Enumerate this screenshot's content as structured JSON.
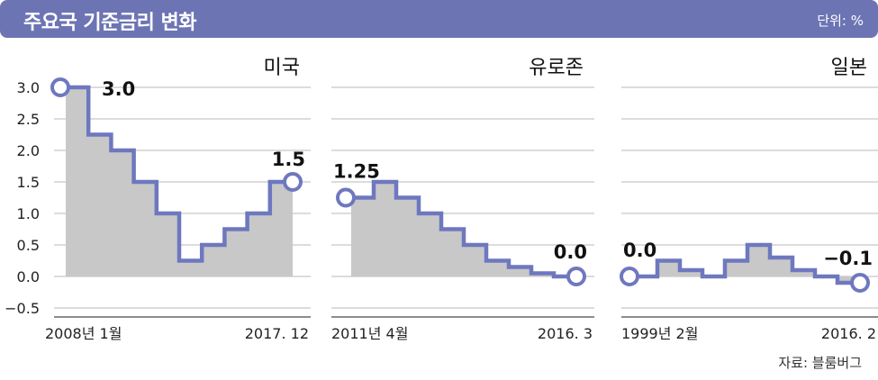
{
  "header": {
    "title": "주요국 기준금리 변화",
    "unit": "단위: %"
  },
  "source": "자료: 블룸버그",
  "colors": {
    "header_bg": "#6d74b4",
    "line": "#6e78bf",
    "fill": "#c8c8c8",
    "grid": "#b8b8b8"
  },
  "chart_data": [
    {
      "type": "area",
      "title": "미국",
      "y_ticks": [
        "3.0",
        "2.5",
        "2.0",
        "1.5",
        "1.0",
        "0.5",
        "0.0",
        "−0.5"
      ],
      "ylim": [
        -0.5,
        3.0
      ],
      "x_labels": {
        "start": "2008년 1월",
        "end": "2017. 12"
      },
      "values": [
        3.0,
        2.25,
        2.0,
        1.5,
        1.0,
        0.25,
        0.5,
        0.75,
        1.0,
        1.5
      ],
      "annotations": {
        "start": "3.0",
        "end": "1.5"
      }
    },
    {
      "type": "area",
      "title": "유로존",
      "ylim": [
        -0.5,
        3.0
      ],
      "x_labels": {
        "start": "2011년 4월",
        "end": "2016. 3"
      },
      "values": [
        1.25,
        1.5,
        1.25,
        1.0,
        0.75,
        0.5,
        0.25,
        0.15,
        0.05,
        0.0
      ],
      "annotations": {
        "start": "1.25",
        "end": "0.0"
      }
    },
    {
      "type": "area",
      "title": "일본",
      "ylim": [
        -0.5,
        3.0
      ],
      "x_labels": {
        "start": "1999년 2월",
        "end": "2016. 2"
      },
      "values": [
        0.0,
        0.25,
        0.1,
        0.0,
        0.25,
        0.5,
        0.3,
        0.1,
        0.0,
        -0.1
      ],
      "annotations": {
        "start": "0.0",
        "end": "−0.1"
      }
    }
  ]
}
